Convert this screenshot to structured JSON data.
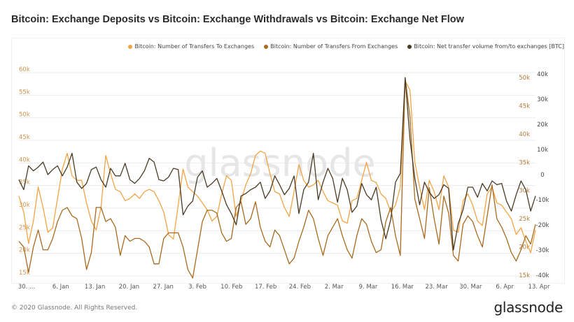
{
  "title": "Bitcoin: Exchange Deposits vs Bitcoin: Exchange Withdrawals vs Bitcoin: Exchange Net Flow",
  "legend": [
    {
      "label": "Bitcoin: Number of Transfers To Exchanges",
      "color": "#f2a446"
    },
    {
      "label": "Bitcoin: Number of Transfers From Exchanges",
      "color": "#a86a1e"
    },
    {
      "label": "Bitcoin: Net transfer volume from/to exchanges [BTC]",
      "color": "#4a3b24"
    }
  ],
  "footer": {
    "copyright": "© 2020 Glassnode. All Rights Reserved."
  },
  "brand": "glassnode",
  "watermark": "glassnode",
  "colors": {
    "deposits": "#f2a446",
    "withdrawals": "#a86a1e",
    "netflow": "#4a3b24",
    "grid": "#ececec",
    "left_axis_text": "#c9964e",
    "right_axis1_text": "#b07a3a",
    "right_axis2_text": "#444444"
  },
  "chart_data": {
    "type": "line",
    "title": "Bitcoin: Exchange Deposits vs Bitcoin: Exchange Withdrawals vs Bitcoin: Exchange Net Flow",
    "x_tick_labels": [
      "30. ...",
      "6. Jan",
      "13. Jan",
      "20. Jan",
      "27. Jan",
      "3. Feb",
      "10. Feb",
      "17. Feb",
      "24. Feb",
      "2. Mar",
      "9. Mar",
      "16. Mar",
      "23. Mar",
      "30. Mar",
      "6. Apr",
      "13. Apr"
    ],
    "y_left": {
      "label": "",
      "ticks": [
        "60k",
        "55k",
        "50k",
        "45k",
        "40k",
        "35k",
        "30k",
        "25k",
        "20k",
        "15k"
      ],
      "range": [
        15000,
        60000
      ]
    },
    "y_right_1": {
      "label": "",
      "ticks": [
        "50k",
        "45k",
        "40k",
        "35k",
        "30k",
        "25k",
        "20k",
        "15k"
      ],
      "range": [
        15000,
        50000
      ]
    },
    "y_right_2": {
      "label": "",
      "ticks": [
        "40k",
        "30k",
        "20k",
        "10k",
        "0",
        "-10k",
        "-20k",
        "-30k",
        "-40k"
      ],
      "range": [
        -40000,
        40000
      ]
    },
    "x_start": "2019-12-30",
    "days": 108,
    "series": [
      {
        "name": "Bitcoin: Number of Transfers To Exchanges",
        "axis": "left",
        "values": [
          32500,
          29000,
          22000,
          27000,
          34500,
          30000,
          24500,
          25500,
          32000,
          38500,
          42000,
          37000,
          36000,
          36000,
          31000,
          27000,
          25000,
          30000,
          41500,
          37500,
          34000,
          33500,
          31500,
          32000,
          33000,
          32000,
          33500,
          34000,
          33500,
          31500,
          29000,
          24000,
          23000,
          30500,
          38500,
          34500,
          33500,
          32500,
          31000,
          29500,
          27000,
          28000,
          33000,
          37000,
          36000,
          28000,
          31500,
          35000,
          37500,
          41500,
          42500,
          42000,
          37500,
          33500,
          33000,
          30000,
          28000,
          33500,
          39500,
          36000,
          34500,
          35000,
          36000,
          33500,
          31500,
          31000,
          30500,
          27000,
          26500,
          31500,
          32000,
          36000,
          40000,
          36000,
          35500,
          33000,
          32000,
          29000,
          30500,
          34500,
          58000,
          56000,
          40000,
          34500,
          29500,
          36000,
          33500,
          29500,
          37000,
          34500,
          25000,
          24500,
          31500,
          33000,
          30500,
          27000,
          26000,
          33000,
          34500,
          31000,
          30500,
          29000,
          27500,
          24000,
          25500,
          22500,
          20000,
          25000
        ],
        "axis_range": [
          15000,
          60000
        ]
      },
      {
        "name": "Bitcoin: Number of Transfers From Exchanges",
        "axis": "right1",
        "values": [
          21000,
          20000,
          15500,
          20000,
          23000,
          19500,
          19500,
          21500,
          24500,
          26500,
          27000,
          25500,
          25000,
          21500,
          16000,
          19000,
          27000,
          27000,
          24500,
          25000,
          23500,
          18500,
          22000,
          21000,
          21500,
          21500,
          21000,
          20000,
          17000,
          17000,
          21500,
          22500,
          22500,
          22500,
          20000,
          16000,
          14500,
          19500,
          24500,
          26500,
          26500,
          26000,
          22500,
          21000,
          21500,
          27000,
          28000,
          24000,
          25000,
          28000,
          23500,
          21000,
          20000,
          23000,
          22000,
          19500,
          17000,
          18000,
          21000,
          23500,
          26500,
          25000,
          21500,
          18500,
          22000,
          23500,
          25000,
          22000,
          19500,
          18000,
          22000,
          25000,
          24000,
          21000,
          19000,
          19500,
          24500,
          27000,
          22000,
          18500,
          50000,
          43000,
          28500,
          25000,
          21500,
          30500,
          25000,
          20500,
          29000,
          26000,
          18500,
          17500,
          24000,
          25500,
          24500,
          22000,
          20000,
          25500,
          31000,
          25000,
          23500,
          21500,
          19000,
          17500,
          19500,
          22000,
          20500,
          24000
        ],
        "axis_range": [
          15000,
          50000
        ]
      },
      {
        "name": "Bitcoin: Net transfer volume from/to exchanges [BTC]",
        "axis": "right2",
        "values": [
          -2000,
          -6000,
          3500,
          1500,
          3000,
          5000,
          0,
          2000,
          3500,
          -500,
          3000,
          8500,
          -3000,
          -5500,
          -3500,
          2000,
          3000,
          -2000,
          -5000,
          2500,
          -500,
          -500,
          4500,
          -2000,
          -3500,
          -1500,
          1500,
          6500,
          5000,
          -2000,
          -2500,
          -1000,
          2500,
          2000,
          -16000,
          -12500,
          -10500,
          -1000,
          1500,
          -5000,
          -3500,
          -1500,
          -6500,
          -12000,
          -15500,
          -20000,
          -8500,
          -7500,
          -6000,
          -5000,
          -3000,
          -9500,
          -6500,
          -500,
          -4000,
          -8000,
          -5500,
          -500,
          -15500,
          -6000,
          -3000,
          8500,
          -10000,
          -3000,
          2500,
          -1500,
          -11000,
          -1500,
          -6000,
          -15000,
          -12500,
          -3500,
          -8000,
          -10000,
          -5000,
          -18000,
          -25500,
          -18000,
          -3000,
          500,
          38500,
          14000,
          -1500,
          -12000,
          -3000,
          -7000,
          -9500,
          -8000,
          -4000,
          -5500,
          -30000,
          -19500,
          -14000,
          -5000,
          -5000,
          -9000,
          -3500,
          -6500,
          -2500,
          -4000,
          -3500,
          -10500,
          -14500,
          -8000,
          -2500,
          -6000,
          -14500,
          -8500
        ],
        "axis_range": [
          -40000,
          40000
        ]
      }
    ]
  }
}
